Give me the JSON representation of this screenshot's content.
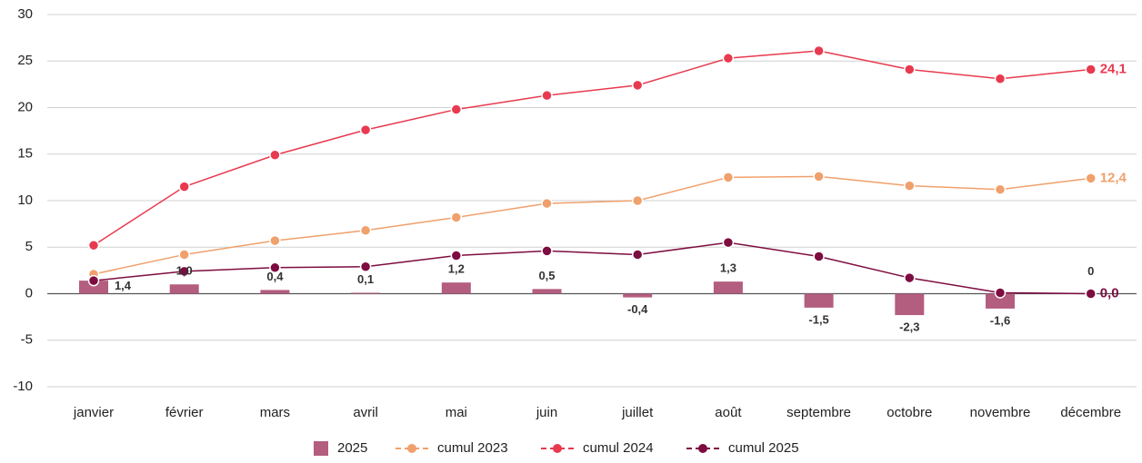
{
  "chart_data": {
    "type": "bar_line",
    "categories": [
      "janvier",
      "février",
      "mars",
      "avril",
      "mai",
      "juin",
      "juillet",
      "août",
      "septembre",
      "octobre",
      "novembre",
      "décembre"
    ],
    "bars": {
      "name": "2025",
      "color": "#b35d7f",
      "values": [
        1.4,
        1.0,
        0.4,
        0.1,
        1.2,
        0.5,
        -0.4,
        1.3,
        -1.5,
        -2.3,
        -1.6,
        0
      ],
      "value_labels": [
        "1,4",
        "1,0",
        "0,4",
        "0,1",
        "1,2",
        "0,5",
        "-0,4",
        "1,3",
        "-1,5",
        "-2,3",
        "-1,6",
        "0"
      ]
    },
    "series": [
      {
        "name": "cumul 2023",
        "color": "#f0a06c",
        "values": [
          2.1,
          4.2,
          5.7,
          6.8,
          8.2,
          9.7,
          10.0,
          12.5,
          12.6,
          11.6,
          11.2,
          12.4
        ],
        "end_label": "12,4"
      },
      {
        "name": "cumul 2024",
        "color": "#e83a4f",
        "values": [
          5.2,
          11.5,
          14.9,
          17.6,
          19.8,
          21.3,
          22.4,
          25.3,
          26.1,
          24.1,
          23.1,
          24.1
        ],
        "end_label": "24,1"
      },
      {
        "name": "cumul 2025",
        "color": "#7d0c40",
        "values": [
          1.4,
          2.4,
          2.8,
          2.9,
          4.1,
          4.6,
          4.2,
          5.5,
          4.0,
          1.7,
          0.1,
          0.0
        ],
        "end_label": "0,0"
      }
    ],
    "ylim": [
      -10,
      30
    ],
    "yticks": [
      -10,
      -5,
      0,
      5,
      10,
      15,
      20,
      25,
      30
    ],
    "grid": true
  }
}
